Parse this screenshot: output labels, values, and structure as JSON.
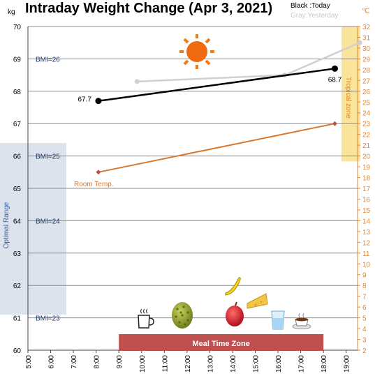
{
  "colors": {
    "today": "#000000",
    "yesterday": "#D0D0D0",
    "room_temp": "#D9782D",
    "temp_axis": "#E6862A",
    "tropical_zone_fill": "#FAE39A",
    "optimal_range_fill": "#DCE3EC",
    "meal_zone_fill": "#C0504D",
    "bmi_text": "#1F3864"
  },
  "chart_data": {
    "type": "line",
    "title": "Intraday Weight Change (Apr 3, 2021)",
    "legend": {
      "today": "Black :Today",
      "yesterday": "Gray:Yesterday",
      "position": "top-right"
    },
    "y_unit_left": "kg",
    "y_unit_right": "℃",
    "ylim": [
      60,
      70
    ],
    "y_ticks": [
      60,
      61,
      62,
      63,
      64,
      65,
      66,
      67,
      68,
      69,
      70
    ],
    "y2lim": [
      2,
      32
    ],
    "y2_ticks": [
      2,
      3,
      4,
      5,
      6,
      7,
      8,
      9,
      10,
      11,
      12,
      13,
      14,
      15,
      16,
      17,
      18,
      19,
      20,
      21,
      22,
      23,
      24,
      25,
      26,
      27,
      28,
      29,
      30,
      31,
      32
    ],
    "xlim": [
      5,
      19.5
    ],
    "x_ticks": [
      "5:00",
      "6:00",
      "7:00",
      "8:00",
      "9:00",
      "10:00",
      "11:00",
      "12:00",
      "13:00",
      "14:00",
      "15:00",
      "16:00",
      "17:00",
      "18:00",
      "19:00"
    ],
    "series": [
      {
        "name": "Today",
        "axis": "left",
        "points": [
          [
            8.1,
            67.7
          ],
          [
            18.5,
            68.7
          ]
        ],
        "labels": [
          "67.7",
          "68.7"
        ]
      },
      {
        "name": "Yesterday",
        "axis": "left",
        "points": [
          [
            9.8,
            68.3
          ],
          [
            16.3,
            68.5
          ],
          [
            19.6,
            69.5
          ]
        ]
      },
      {
        "name": "Room Temp.",
        "axis": "right",
        "points": [
          [
            8.1,
            18.5
          ],
          [
            18.5,
            23
          ]
        ]
      }
    ],
    "bmi_lines": [
      {
        "label": "BMI=26",
        "y": 69
      },
      {
        "label": "BMI=25",
        "y": 66
      },
      {
        "label": "BMI=24",
        "y": 64
      },
      {
        "label": "BMI=23",
        "y": 61
      }
    ],
    "optimal_range": {
      "label": "Optimal Range",
      "y_from": 61.1,
      "y_to": 66.4
    },
    "tropical_zone": {
      "label": "Tropical zone",
      "temp_from": 19.5,
      "temp_to": 32
    },
    "meal_time_zone": {
      "label": "Meal Time Zone",
      "x_from": 9,
      "x_to": 18
    },
    "annotations": {
      "room_temp_label": "Room Temp."
    },
    "icons": [
      "sun-icon",
      "coffee-icon",
      "durian-icon",
      "apple-icon",
      "banana-icon",
      "cheese-icon",
      "water-glass-icon",
      "hot-drink-icon"
    ]
  }
}
